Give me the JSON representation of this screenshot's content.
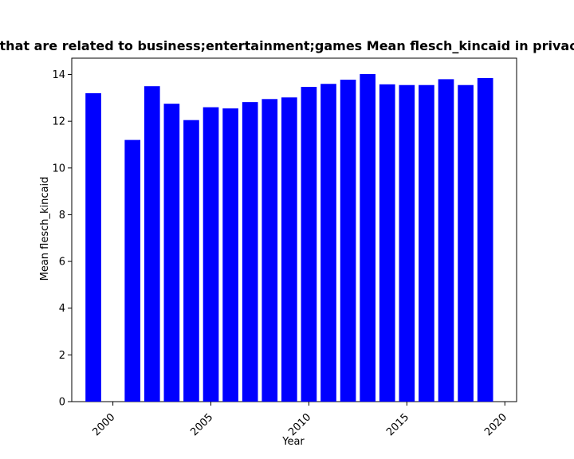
{
  "chart_data": {
    "type": "bar",
    "title": "Websites that are related to business;entertainment;games Mean flesch_kincaid in privacy policies",
    "xlabel": "Year",
    "ylabel": "Mean flesch_kincaid",
    "x": [
      1999,
      2001,
      2002,
      2003,
      2004,
      2005,
      2006,
      2007,
      2008,
      2009,
      2010,
      2011,
      2012,
      2013,
      2014,
      2015,
      2016,
      2017,
      2018,
      2019
    ],
    "values": [
      13.2,
      11.2,
      13.5,
      12.75,
      12.05,
      12.6,
      12.55,
      12.82,
      12.95,
      13.02,
      13.47,
      13.6,
      13.78,
      14.02,
      13.58,
      13.55,
      13.55,
      13.8,
      13.55,
      13.85
    ],
    "xlim": [
      1997.9,
      2020.6
    ],
    "ylim": [
      0,
      14.7
    ],
    "xticks": [
      2000,
      2005,
      2010,
      2015,
      2020
    ],
    "yticks": [
      0,
      2,
      4,
      6,
      8,
      10,
      12,
      14
    ],
    "xtick_rotation": 45,
    "bar_color": "#0000ff",
    "grid": false,
    "legend": "none"
  }
}
